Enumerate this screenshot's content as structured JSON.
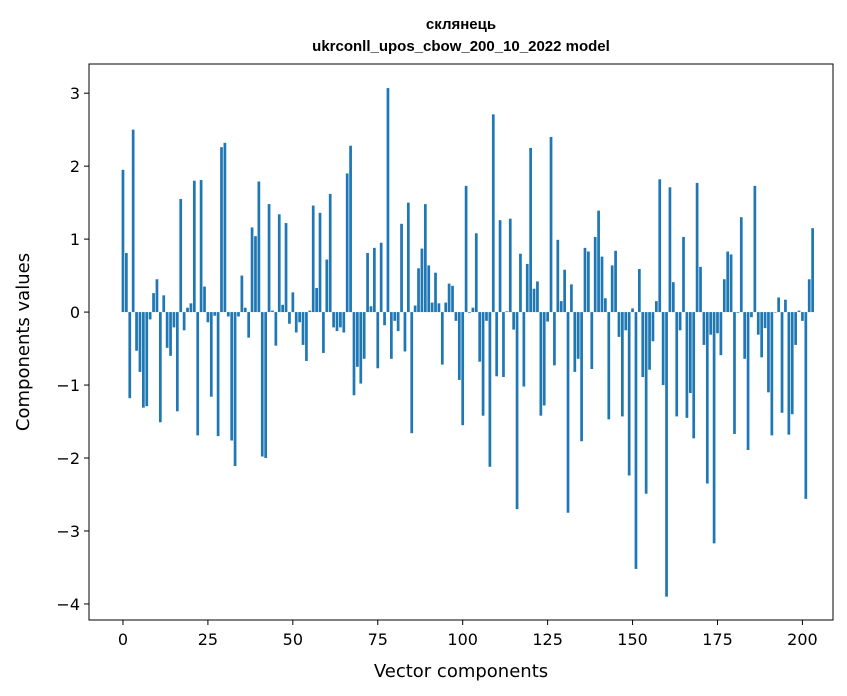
{
  "chart_data": {
    "type": "bar",
    "title_line1": "склянець",
    "title_line2": "ukrconll_upos_cbow_200_10_2022 model",
    "xlabel": "Vector components",
    "ylabel": "Components values",
    "xlim": [
      -10,
      209
    ],
    "ylim": [
      -4.22,
      3.4
    ],
    "xticks": [
      0,
      25,
      50,
      75,
      100,
      125,
      150,
      175,
      200
    ],
    "yticks": [
      3,
      2,
      1,
      0,
      -1,
      -2,
      -3,
      -4
    ],
    "xtick_labels": [
      "0",
      "25",
      "50",
      "75",
      "100",
      "125",
      "150",
      "175",
      "200"
    ],
    "ytick_labels": [
      "3",
      "2",
      "1",
      "0",
      "−1",
      "−2",
      "−3",
      "−4"
    ],
    "bar_color": "#1f77b4",
    "values": [
      1.95,
      0.81,
      -1.18,
      2.5,
      -0.53,
      -0.82,
      -1.31,
      -1.29,
      -0.1,
      0.26,
      0.45,
      -1.51,
      0.23,
      -0.49,
      -0.6,
      -0.21,
      -1.36,
      1.55,
      -0.25,
      0.06,
      0.12,
      1.8,
      -1.69,
      1.81,
      0.35,
      -0.14,
      -1.16,
      -0.05,
      -1.7,
      2.26,
      2.32,
      -0.06,
      -1.76,
      -2.11,
      -0.06,
      0.5,
      0.06,
      -0.35,
      1.16,
      1.04,
      1.79,
      -1.98,
      -2.0,
      1.48,
      0.02,
      -0.46,
      1.34,
      0.1,
      1.22,
      -0.16,
      0.27,
      -0.28,
      -0.14,
      -0.45,
      -0.67,
      0.02,
      1.46,
      0.33,
      1.36,
      -0.56,
      0.72,
      1.62,
      -0.21,
      -0.26,
      -0.21,
      -0.28,
      1.9,
      2.28,
      -1.14,
      -0.75,
      -0.98,
      -0.64,
      0.81,
      0.08,
      0.88,
      -0.77,
      0.95,
      -0.18,
      3.07,
      -0.64,
      -0.12,
      -0.26,
      1.21,
      -0.54,
      1.5,
      -1.66,
      0.09,
      0.6,
      0.87,
      1.48,
      0.64,
      0.13,
      0.54,
      0.12,
      -0.72,
      0.13,
      0.39,
      0.36,
      -0.12,
      -0.93,
      -1.55,
      1.73,
      -0.01,
      0.06,
      1.08,
      -0.68,
      -1.42,
      -0.12,
      -2.12,
      2.71,
      -0.88,
      1.26,
      -0.89,
      0.01,
      1.28,
      -0.24,
      -2.7,
      0.8,
      -1.02,
      0.66,
      2.25,
      0.32,
      0.42,
      -1.42,
      -1.28,
      -0.13,
      2.4,
      -0.73,
      0.99,
      0.15,
      0.58,
      -2.75,
      0.38,
      -0.82,
      -0.64,
      -1.77,
      0.88,
      0.83,
      -0.78,
      1.03,
      1.39,
      0.76,
      0.19,
      -1.47,
      0.64,
      0.84,
      -0.34,
      -1.43,
      -0.25,
      -2.24,
      0.05,
      -3.52,
      0.59,
      -0.89,
      -2.49,
      -0.79,
      -0.4,
      0.15,
      1.82,
      -1.0,
      -3.9,
      1.71,
      0.41,
      -1.43,
      -0.25,
      1.03,
      -1.45,
      -1.11,
      -1.73,
      1.77,
      0.62,
      -0.45,
      -2.35,
      -0.31,
      -3.17,
      -0.29,
      -0.59,
      0.45,
      0.83,
      0.79,
      -1.67,
      -0.01,
      1.3,
      -0.64,
      -1.89,
      -0.07,
      1.73,
      -0.31,
      -0.62,
      -0.22,
      -1.1,
      -1.69,
      0.0,
      0.2,
      -1.38,
      0.17,
      -1.68,
      -1.4,
      -0.45,
      0.02,
      -0.12,
      -2.56,
      0.45,
      1.15
    ]
  }
}
